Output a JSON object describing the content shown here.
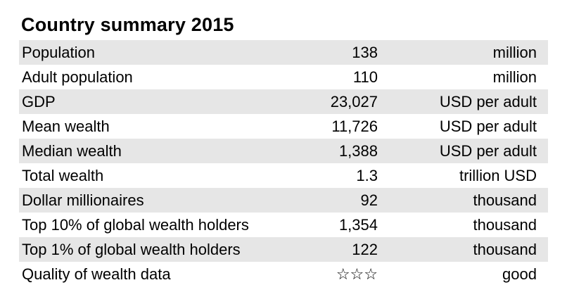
{
  "title": "Country summary 2015",
  "rows": [
    {
      "label": "Population",
      "value": "138",
      "unit": "million"
    },
    {
      "label": "Adult population",
      "value": "110",
      "unit": "million"
    },
    {
      "label": "GDP",
      "value": "23,027",
      "unit": "USD per adult"
    },
    {
      "label": "Mean wealth",
      "value": "11,726",
      "unit": "USD per adult"
    },
    {
      "label": "Median wealth",
      "value": "1,388",
      "unit": "USD per adult"
    },
    {
      "label": "Total wealth",
      "value": "1.3",
      "unit": "trillion USD"
    },
    {
      "label": "Dollar millionaires",
      "value": "92",
      "unit": "thousand"
    },
    {
      "label": "Top 10% of global wealth holders",
      "value": "1,354",
      "unit": "thousand"
    },
    {
      "label": "Top 1% of global wealth holders",
      "value": "122",
      "unit": "thousand"
    },
    {
      "label": "Quality of wealth data",
      "value": "☆☆☆",
      "unit": "good"
    }
  ],
  "colors": {
    "shaded_row": "#e6e6e6",
    "text": "#000000"
  }
}
